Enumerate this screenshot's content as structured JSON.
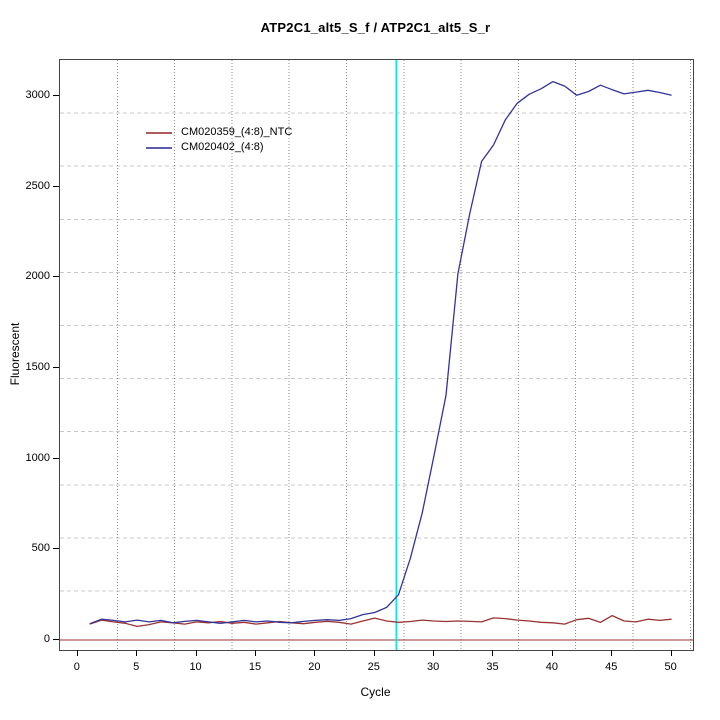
{
  "title": "ATP2C1_alt5_S_f / ATP2C1_alt5_S_r",
  "axes": {
    "x_label": "Cycle",
    "y_label": "Fluorescent",
    "x_ticks": [
      0,
      5,
      10,
      15,
      20,
      25,
      30,
      35,
      40,
      45,
      50
    ],
    "y_ticks": [
      0,
      500,
      1000,
      1500,
      2000,
      2500,
      3000
    ]
  },
  "legend": {
    "entries": [
      {
        "label": "CM020359_(4:8)_NTC",
        "color": "#993333"
      },
      {
        "label": "CM020402_(4:8)",
        "color": "#333399"
      }
    ]
  },
  "chart_data": {
    "type": "line",
    "title": "ATP2C1_alt5_S_f / ATP2C1_alt5_S_r",
    "xlabel": "Cycle",
    "ylabel": "Fluorescent",
    "xlim": [
      -1.5,
      51.8
    ],
    "ylim": [
      -55,
      3199
    ],
    "grid": {
      "v_count": 11,
      "v_step": 57.3,
      "h_count": 10,
      "h_step": 53.1,
      "v_style": "dotted",
      "h_style": "dashed"
    },
    "x": [
      1,
      2,
      3,
      4,
      5,
      6,
      7,
      8,
      9,
      10,
      11,
      12,
      13,
      14,
      15,
      16,
      17,
      18,
      19,
      20,
      21,
      22,
      23,
      24,
      25,
      26,
      27,
      28,
      29,
      30,
      31,
      32,
      33,
      34,
      35,
      36,
      37,
      38,
      39,
      40,
      41,
      42,
      43,
      44,
      45,
      46,
      47,
      48,
      49,
      50
    ],
    "series": [
      {
        "name": "CM020359_(4:8)_NTC",
        "color": "#993333",
        "values": [
          88,
          110,
          100,
          92,
          75,
          85,
          100,
          95,
          88,
          100,
          95,
          102,
          92,
          98,
          88,
          95,
          102,
          95,
          90,
          98,
          103,
          98,
          88,
          105,
          121,
          105,
          98,
          102,
          110,
          105,
          102,
          105,
          103,
          100,
          122,
          118,
          110,
          105,
          98,
          95,
          88,
          112,
          120,
          97,
          135,
          105,
          100,
          115,
          108,
          115
        ]
      },
      {
        "name": "CM020402_(4:8)",
        "color": "#333399",
        "values": [
          90,
          115,
          108,
          100,
          110,
          100,
          108,
          95,
          103,
          108,
          100,
          92,
          100,
          108,
          100,
          105,
          98,
          95,
          103,
          108,
          112,
          108,
          118,
          140,
          152,
          180,
          250,
          450,
          700,
          1020,
          1350,
          2020,
          2350,
          2640,
          2730,
          2870,
          2960,
          3010,
          3040,
          3080,
          3055,
          3005,
          3025,
          3060,
          3035,
          3012,
          3022,
          3032,
          3020,
          3005
        ]
      }
    ],
    "vline": {
      "x": 26.8,
      "color": "#00e8e8",
      "meaning": "threshold-cycle-marker"
    },
    "hline": {
      "y": 0,
      "color": "#993333",
      "meaning": "zero-baseline"
    },
    "legend_position": "top-left"
  }
}
